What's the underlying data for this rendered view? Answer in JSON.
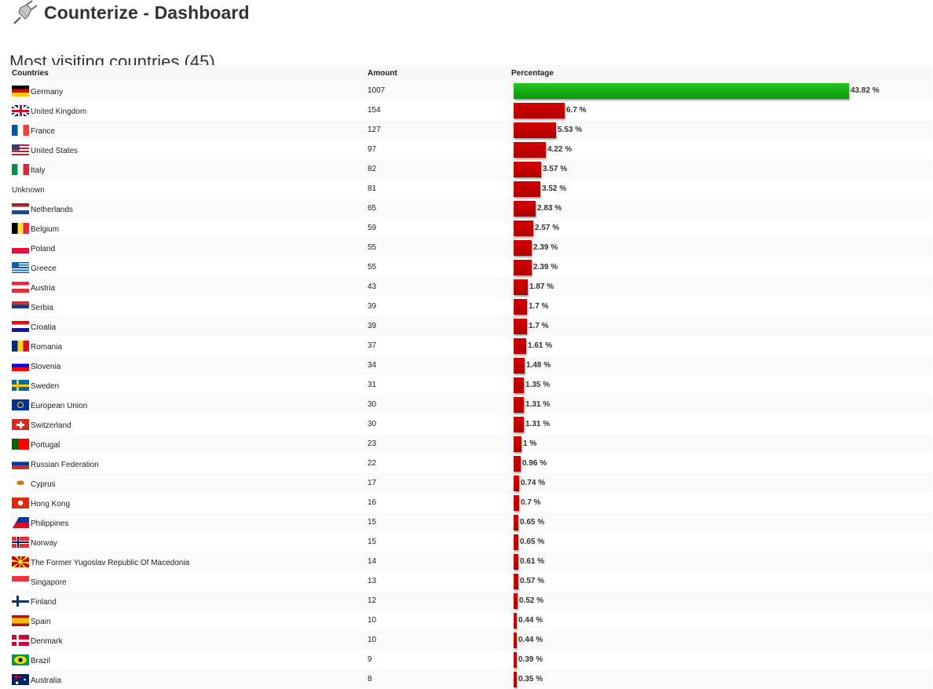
{
  "header": {
    "title": "Counterize - Dashboard",
    "icon": "plug-icon"
  },
  "section": {
    "title": "Most visiting countries (45)"
  },
  "table": {
    "columns": [
      "Countries",
      "Amount",
      "Percentage"
    ],
    "colors": {
      "top_bar": "#11b011",
      "bar": "#c80000"
    },
    "rows": [
      {
        "country": "Germany",
        "flag": "de",
        "amount": "1007",
        "percent": 43.82,
        "percent_label": "43.82 %"
      },
      {
        "country": "United Kingdom",
        "flag": "gb",
        "amount": "154",
        "percent": 6.7,
        "percent_label": "6.7 %"
      },
      {
        "country": "France",
        "flag": "fr",
        "amount": "127",
        "percent": 5.53,
        "percent_label": "5.53 %"
      },
      {
        "country": "United States",
        "flag": "us",
        "amount": "97",
        "percent": 4.22,
        "percent_label": "4.22 %"
      },
      {
        "country": "Italy",
        "flag": "it",
        "amount": "82",
        "percent": 3.57,
        "percent_label": "3.57 %"
      },
      {
        "country": "Unknown",
        "flag": "",
        "amount": "81",
        "percent": 3.52,
        "percent_label": "3.52 %"
      },
      {
        "country": "Netherlands",
        "flag": "nl",
        "amount": "65",
        "percent": 2.83,
        "percent_label": "2.83 %"
      },
      {
        "country": "Belgium",
        "flag": "be",
        "amount": "59",
        "percent": 2.57,
        "percent_label": "2.57 %"
      },
      {
        "country": "Poland",
        "flag": "pl",
        "amount": "55",
        "percent": 2.39,
        "percent_label": "2.39 %"
      },
      {
        "country": "Greece",
        "flag": "gr",
        "amount": "55",
        "percent": 2.39,
        "percent_label": "2.39 %"
      },
      {
        "country": "Austria",
        "flag": "at",
        "amount": "43",
        "percent": 1.87,
        "percent_label": "1.87 %"
      },
      {
        "country": "Serbia",
        "flag": "rs",
        "amount": "39",
        "percent": 1.7,
        "percent_label": "1.7 %"
      },
      {
        "country": "Croatia",
        "flag": "hr",
        "amount": "39",
        "percent": 1.7,
        "percent_label": "1.7 %"
      },
      {
        "country": "Romania",
        "flag": "ro",
        "amount": "37",
        "percent": 1.61,
        "percent_label": "1.61 %"
      },
      {
        "country": "Slovenia",
        "flag": "si",
        "amount": "34",
        "percent": 1.48,
        "percent_label": "1.48 %"
      },
      {
        "country": "Sweden",
        "flag": "se",
        "amount": "31",
        "percent": 1.35,
        "percent_label": "1.35 %"
      },
      {
        "country": "European Union",
        "flag": "eu",
        "amount": "30",
        "percent": 1.31,
        "percent_label": "1.31 %"
      },
      {
        "country": "Switzerland",
        "flag": "ch",
        "amount": "30",
        "percent": 1.31,
        "percent_label": "1.31 %"
      },
      {
        "country": "Portugal",
        "flag": "pt",
        "amount": "23",
        "percent": 1,
        "percent_label": "1 %"
      },
      {
        "country": "Russian Federation",
        "flag": "ru",
        "amount": "22",
        "percent": 0.96,
        "percent_label": "0.96 %"
      },
      {
        "country": "Cyprus",
        "flag": "cy",
        "amount": "17",
        "percent": 0.74,
        "percent_label": "0.74 %"
      },
      {
        "country": "Hong Kong",
        "flag": "hk",
        "amount": "16",
        "percent": 0.7,
        "percent_label": "0.7 %"
      },
      {
        "country": "Philippines",
        "flag": "ph",
        "amount": "15",
        "percent": 0.65,
        "percent_label": "0.65 %"
      },
      {
        "country": "Norway",
        "flag": "no",
        "amount": "15",
        "percent": 0.65,
        "percent_label": "0.65 %"
      },
      {
        "country": "The Former Yugoslav Republic Of Macedonia",
        "flag": "mk",
        "amount": "14",
        "percent": 0.61,
        "percent_label": "0.61 %"
      },
      {
        "country": "Singapore",
        "flag": "sg",
        "amount": "13",
        "percent": 0.57,
        "percent_label": "0.57 %"
      },
      {
        "country": "Finland",
        "flag": "fi",
        "amount": "12",
        "percent": 0.52,
        "percent_label": "0.52 %"
      },
      {
        "country": "Spain",
        "flag": "es",
        "amount": "10",
        "percent": 0.44,
        "percent_label": "0.44 %"
      },
      {
        "country": "Denmark",
        "flag": "dk",
        "amount": "10",
        "percent": 0.44,
        "percent_label": "0.44 %"
      },
      {
        "country": "Brazil",
        "flag": "br",
        "amount": "9",
        "percent": 0.39,
        "percent_label": "0.39 %"
      },
      {
        "country": "Australia",
        "flag": "au",
        "amount": "8",
        "percent": 0.35,
        "percent_label": "0.35 %"
      }
    ]
  }
}
